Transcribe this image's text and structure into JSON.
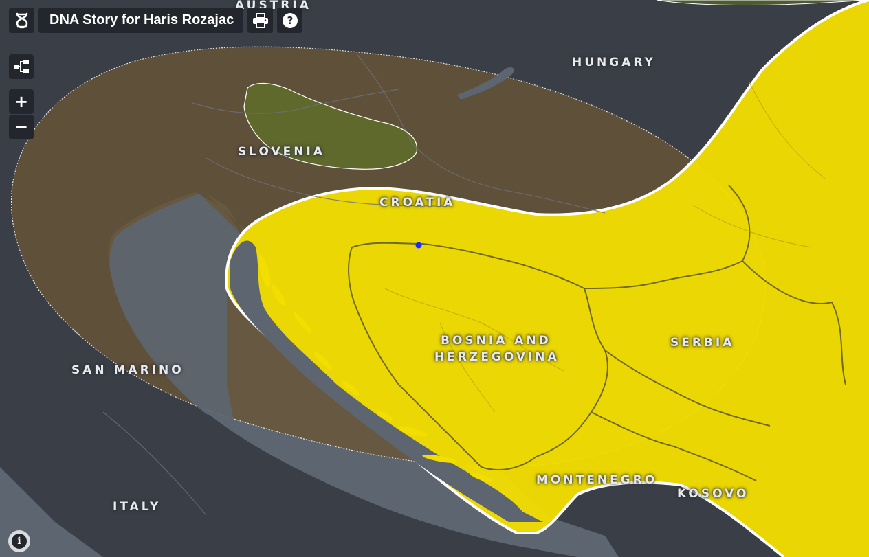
{
  "toolbar": {
    "title": "DNA Story for Haris Rozajac",
    "dna_icon": "dna-icon",
    "print_icon": "print-icon",
    "help_icon": "help-icon"
  },
  "controls": {
    "layers_icon": "tree-layers-icon",
    "zoom_in": "+",
    "zoom_out": "−",
    "info": "i"
  },
  "map": {
    "labels": {
      "austria": "AUSTRIA",
      "hungary": "HUNGARY",
      "slovenia": "SLOVENIA",
      "croatia": "CROATIA",
      "bosnia_line1": "BOSNIA AND",
      "bosnia_line2": "HERZEGOVINA",
      "serbia": "SERBIA",
      "san_marino": "SAN MARINO",
      "montenegro": "MONTENEGRO",
      "kosovo": "KOSOVO",
      "italy": "ITALY"
    },
    "colors": {
      "land": "#3a3f47",
      "sea": "#5d6570",
      "region_broad": "#6a5536",
      "region_core": "#f2de00",
      "region_green": "#5f6a2a",
      "outline": "#ffffff",
      "marker": "#1a2cff"
    }
  }
}
